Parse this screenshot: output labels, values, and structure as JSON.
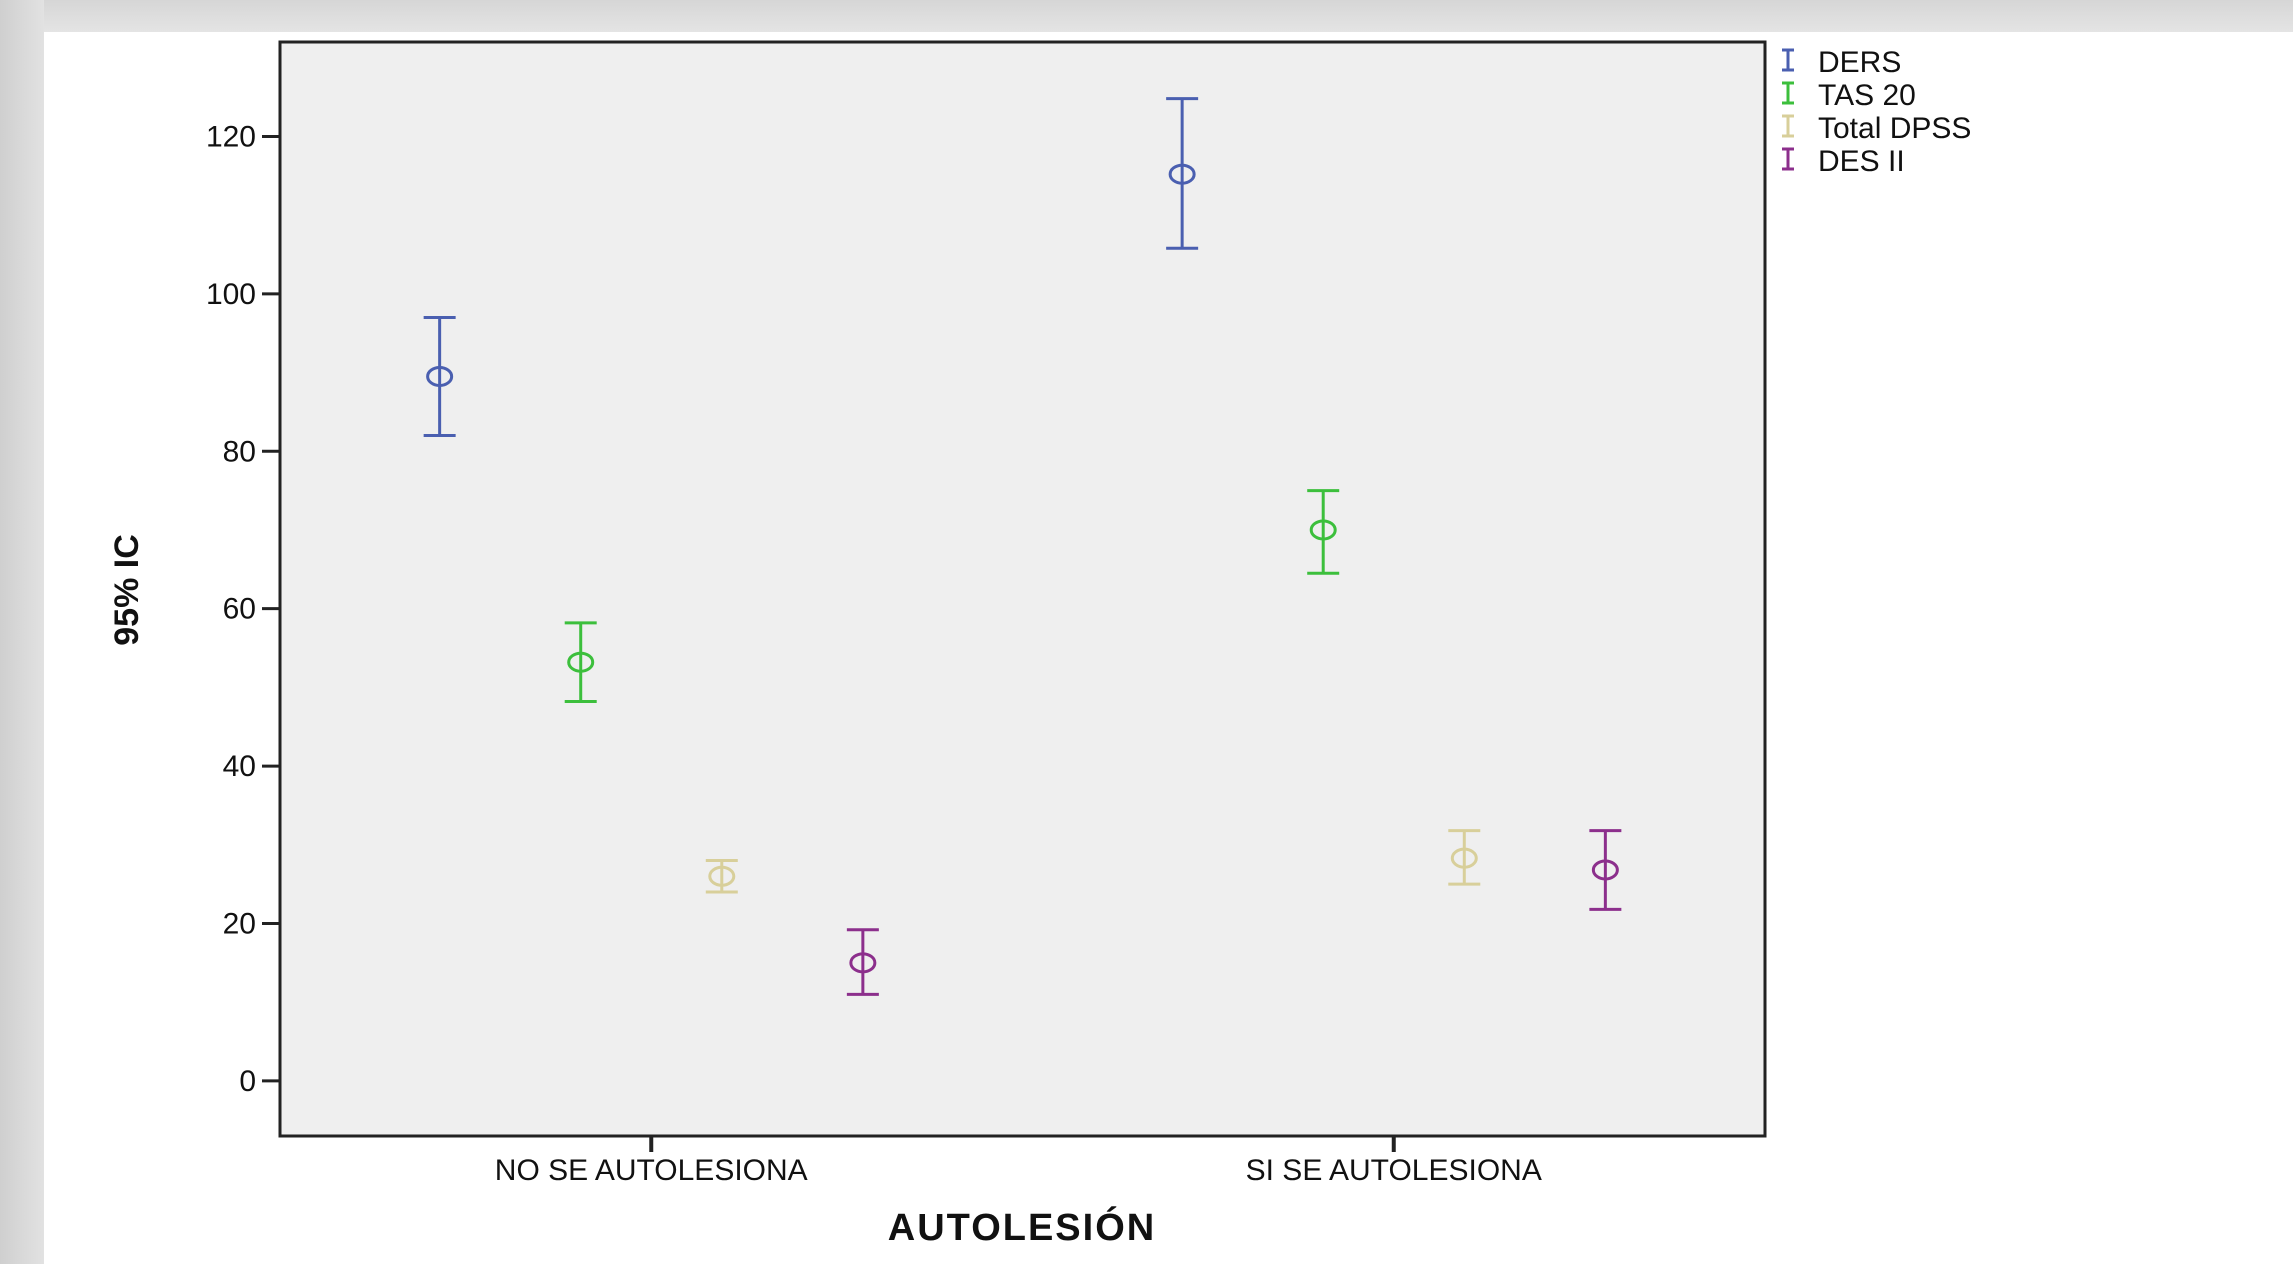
{
  "chart_data": {
    "type": "errorbar",
    "xlabel": "AUTOLESIÓN",
    "ylabel": "95% IC",
    "ylim": [
      -7,
      132
    ],
    "yticks": [
      0,
      20,
      40,
      60,
      80,
      100,
      120
    ],
    "categories": [
      "NO SE AUTOLESIONA",
      "SI SE AUTOLESIONA"
    ],
    "legend_position": "right-top",
    "series": [
      {
        "name": "DERS",
        "color": "#4a5fb0",
        "values": [
          {
            "mean": 89.5,
            "lower": 82.0,
            "upper": 97.0
          },
          {
            "mean": 115.2,
            "lower": 105.8,
            "upper": 124.8
          }
        ]
      },
      {
        "name": "TAS 20",
        "color": "#3cbf3c",
        "values": [
          {
            "mean": 53.2,
            "lower": 48.2,
            "upper": 58.2
          },
          {
            "mean": 70.0,
            "lower": 64.5,
            "upper": 75.0
          }
        ]
      },
      {
        "name": "Total DPSS",
        "color": "#d8cf9a",
        "values": [
          {
            "mean": 26.0,
            "lower": 24.0,
            "upper": 28.0
          },
          {
            "mean": 28.3,
            "lower": 25.0,
            "upper": 31.8
          }
        ]
      },
      {
        "name": "DES II",
        "color": "#8c2f8c",
        "values": [
          {
            "mean": 15.0,
            "lower": 11.0,
            "upper": 19.2
          },
          {
            "mean": 26.8,
            "lower": 21.8,
            "upper": 31.8
          }
        ]
      }
    ]
  }
}
